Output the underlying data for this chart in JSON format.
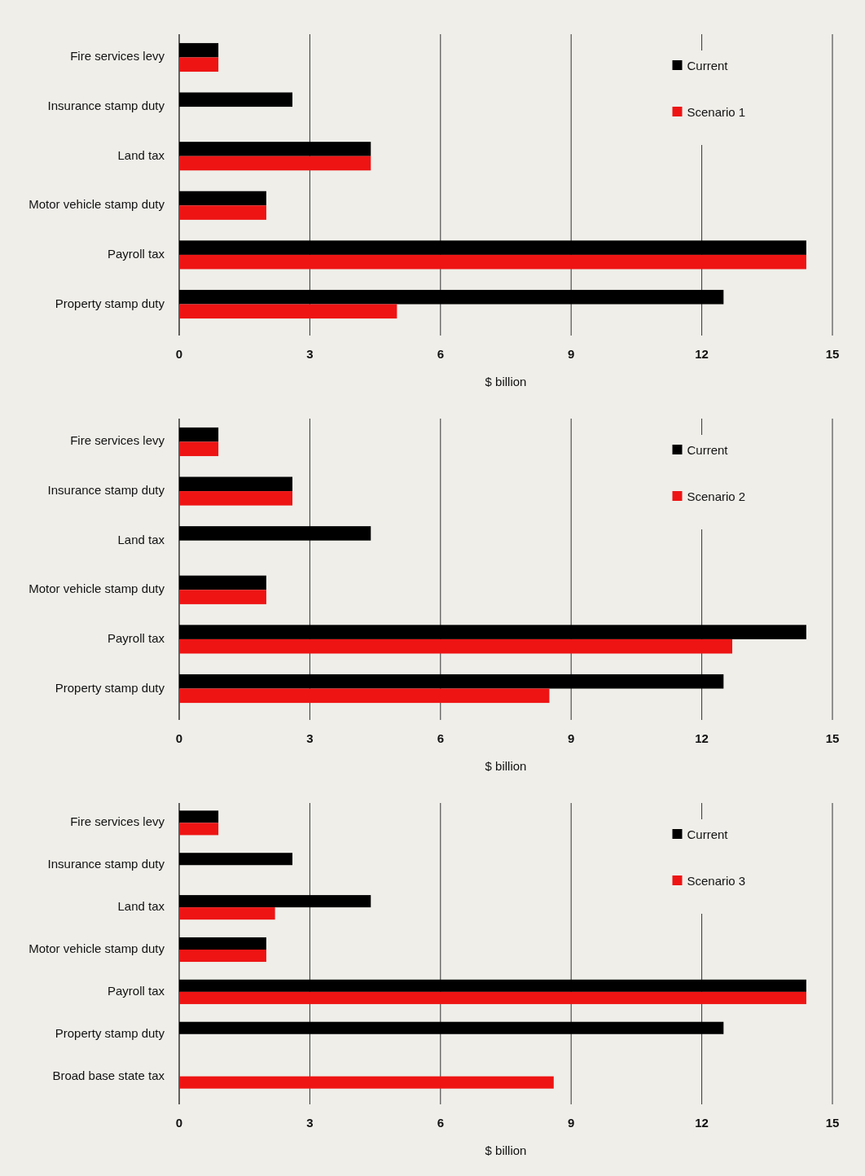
{
  "chart_data": [
    {
      "type": "bar",
      "orientation": "horizontal",
      "categories": [
        "Fire services levy",
        "Insurance stamp duty",
        "Land tax",
        "Motor vehicle stamp duty",
        "Payroll tax",
        "Property stamp duty"
      ],
      "series": [
        {
          "name": "Current",
          "color": "#000000",
          "values": [
            0.9,
            2.6,
            4.4,
            2.0,
            14.4,
            12.5
          ]
        },
        {
          "name": "Scenario 1",
          "color": "#ee1414",
          "values": [
            0.9,
            null,
            4.4,
            2.0,
            14.4,
            5.0
          ]
        }
      ],
      "xlim": [
        0,
        15
      ],
      "xticks": [
        0,
        3,
        6,
        9,
        12,
        15
      ],
      "xlabel": "$ billion",
      "grid": "x",
      "legend": "top right"
    },
    {
      "type": "bar",
      "orientation": "horizontal",
      "categories": [
        "Fire services levy",
        "Insurance stamp duty",
        "Land tax",
        "Motor vehicle stamp duty",
        "Payroll tax",
        "Property stamp duty"
      ],
      "series": [
        {
          "name": "Current",
          "color": "#000000",
          "values": [
            0.9,
            2.6,
            4.4,
            2.0,
            14.4,
            12.5
          ]
        },
        {
          "name": "Scenario 2",
          "color": "#ee1414",
          "values": [
            0.9,
            2.6,
            null,
            2.0,
            12.7,
            8.5
          ]
        }
      ],
      "xlim": [
        0,
        15
      ],
      "xticks": [
        0,
        3,
        6,
        9,
        12,
        15
      ],
      "xlabel": "$ billion",
      "grid": "x",
      "legend": "top right"
    },
    {
      "type": "bar",
      "orientation": "horizontal",
      "categories": [
        "Fire services levy",
        "Insurance stamp duty",
        "Land tax",
        "Motor vehicle stamp duty",
        "Payroll tax",
        "Property stamp duty",
        "Broad base state tax"
      ],
      "series": [
        {
          "name": "Current",
          "color": "#000000",
          "values": [
            0.9,
            2.6,
            4.4,
            2.0,
            14.4,
            12.5,
            null
          ]
        },
        {
          "name": "Scenario 3",
          "color": "#ee1414",
          "values": [
            0.9,
            null,
            2.2,
            2.0,
            14.4,
            null,
            8.6
          ]
        }
      ],
      "xlim": [
        0,
        15
      ],
      "xticks": [
        0,
        3,
        6,
        9,
        12,
        15
      ],
      "xlabel": "$ billion",
      "grid": "x",
      "legend": "top right"
    }
  ]
}
